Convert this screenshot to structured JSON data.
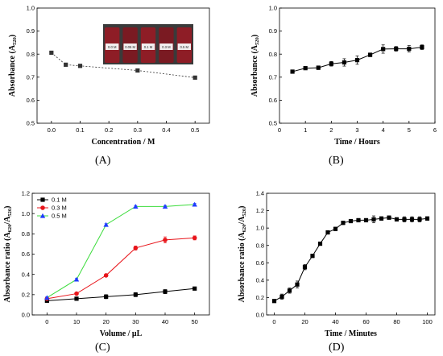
{
  "panel_labels": [
    "(A)",
    "(B)",
    "(C)",
    "(D)"
  ],
  "chart_data": [
    {
      "panel": "(A)",
      "type": "line",
      "xlabel": "Concentration / M",
      "ylabel": "Absorbance (A",
      "ylabel_sub": "520",
      "ylabel_tail": ")",
      "xlim": [
        -0.05,
        0.55
      ],
      "ylim": [
        0.5,
        1.0
      ],
      "xticks": [
        0.0,
        0.1,
        0.2,
        0.3,
        0.4,
        0.5
      ],
      "xtick_labels": [
        "0.0",
        "0.1",
        "0.2",
        "0.3",
        "0.4",
        "0.5"
      ],
      "yticks": [
        0.5,
        0.6,
        0.7,
        0.8,
        0.9,
        1.0
      ],
      "ytick_labels": [
        "0.5",
        "0.6",
        "0.7",
        "0.8",
        "0.9",
        "1.0"
      ],
      "grid": false,
      "series": [
        {
          "color": "#333333",
          "marker": "square",
          "dashed": true,
          "x": [
            0.0,
            0.05,
            0.1,
            0.3,
            0.5
          ],
          "y": [
            0.806,
            0.754,
            0.749,
            0.729,
            0.698
          ],
          "err": [
            0.004,
            0.004,
            0.007,
            0.004,
            0.004
          ]
        }
      ],
      "inset": {
        "vial_labels": [
          "0.0 M",
          "0.05 M",
          "0.1 M",
          "0.3 M",
          "0.5 M"
        ]
      }
    },
    {
      "panel": "(B)",
      "type": "line",
      "xlabel": "Time / Hours",
      "ylabel": "Absorbance (A",
      "ylabel_sub": "520",
      "ylabel_tail": ")",
      "xlim": [
        0,
        6
      ],
      "ylim": [
        0.5,
        1.0
      ],
      "xticks": [
        0,
        1,
        2,
        3,
        4,
        5,
        6
      ],
      "xtick_labels": [
        "0",
        "1",
        "2",
        "3",
        "4",
        "5",
        "6"
      ],
      "yticks": [
        0.5,
        0.6,
        0.7,
        0.8,
        0.9,
        1.0
      ],
      "ytick_labels": [
        "0.5",
        "0.6",
        "0.7",
        "0.8",
        "0.9",
        "1.0"
      ],
      "grid": false,
      "series": [
        {
          "color": "#000000",
          "marker": "square",
          "x": [
            0.5,
            1.0,
            1.5,
            2.0,
            2.5,
            3.0,
            3.5,
            4.0,
            4.5,
            5.0,
            5.5
          ],
          "y": [
            0.724,
            0.739,
            0.741,
            0.758,
            0.764,
            0.774,
            0.797,
            0.822,
            0.823,
            0.823,
            0.83
          ],
          "err": [
            0.005,
            0.006,
            0.008,
            0.01,
            0.016,
            0.018,
            0.008,
            0.018,
            0.01,
            0.014,
            0.01
          ]
        }
      ]
    },
    {
      "panel": "(C)",
      "type": "line",
      "xlabel": "Volume / μL",
      "ylabel": "Absorbance ratio (A",
      "ylabel_sub": "620",
      "ylabel_mid": "/A",
      "ylabel_sub2": "520",
      "ylabel_tail": ")",
      "xlim": [
        -5,
        55
      ],
      "ylim": [
        0.0,
        1.2
      ],
      "xticks": [
        0,
        10,
        20,
        30,
        40,
        50
      ],
      "xtick_labels": [
        "0",
        "10",
        "20",
        "30",
        "40",
        "50"
      ],
      "yticks": [
        0.0,
        0.2,
        0.4,
        0.6,
        0.8,
        1.0,
        1.2
      ],
      "ytick_labels": [
        "0.0",
        "0.2",
        "0.4",
        "0.6",
        "0.8",
        "1.0",
        "1.2"
      ],
      "grid": false,
      "legend": "top-left",
      "series": [
        {
          "name": "0.1 M",
          "color": "#000000",
          "marker": "square",
          "x": [
            0,
            10,
            20,
            30,
            40,
            50
          ],
          "y": [
            0.14,
            0.16,
            0.18,
            0.2,
            0.23,
            0.26
          ],
          "err": [
            0.01,
            0.01,
            0.02,
            0.02,
            0.02,
            0.01
          ]
        },
        {
          "name": "0.3 M",
          "color": "#e8151b",
          "marker": "circle",
          "x": [
            0,
            10,
            20,
            30,
            40,
            50
          ],
          "y": [
            0.16,
            0.21,
            0.39,
            0.66,
            0.74,
            0.76
          ],
          "err": [
            0.01,
            0.01,
            0.01,
            0.02,
            0.03,
            0.02
          ]
        },
        {
          "name": "0.5 M",
          "color": "#1f3cff",
          "line_color": "#3cdc3c",
          "marker": "triangle",
          "x": [
            0,
            10,
            20,
            30,
            40,
            50
          ],
          "y": [
            0.17,
            0.35,
            0.89,
            1.07,
            1.07,
            1.09
          ],
          "err": [
            0.01,
            0.01,
            0.01,
            0.01,
            0.01,
            0.01
          ]
        }
      ]
    },
    {
      "panel": "(D)",
      "type": "line",
      "xlabel": "Time / Minutes",
      "ylabel": "Absorbance ratio (A",
      "ylabel_sub": "620",
      "ylabel_mid": "/A",
      "ylabel_sub2": "520",
      "ylabel_tail": ")",
      "xlim": [
        -5,
        105
      ],
      "ylim": [
        0.0,
        1.4
      ],
      "xticks": [
        0,
        20,
        40,
        60,
        80,
        100
      ],
      "xtick_labels": [
        "0",
        "20",
        "40",
        "60",
        "80",
        "100"
      ],
      "yticks": [
        0.0,
        0.2,
        0.4,
        0.6,
        0.8,
        1.0,
        1.2,
        1.4
      ],
      "ytick_labels": [
        "0.0",
        "0.2",
        "0.4",
        "0.6",
        "0.8",
        "1.0",
        "1.2",
        "1.4"
      ],
      "grid": false,
      "series": [
        {
          "color": "#000000",
          "marker": "square",
          "x": [
            0,
            5,
            10,
            15,
            20,
            25,
            30,
            35,
            40,
            45,
            50,
            55,
            60,
            65,
            70,
            75,
            80,
            85,
            90,
            95,
            100
          ],
          "y": [
            0.16,
            0.21,
            0.28,
            0.35,
            0.55,
            0.68,
            0.82,
            0.95,
            0.99,
            1.06,
            1.08,
            1.09,
            1.09,
            1.1,
            1.11,
            1.12,
            1.1,
            1.1,
            1.1,
            1.1,
            1.11
          ],
          "err": [
            0.01,
            0.03,
            0.03,
            0.04,
            0.03,
            0.02,
            0.02,
            0.02,
            0.02,
            0.02,
            0.02,
            0.02,
            0.02,
            0.04,
            0.02,
            0.02,
            0.02,
            0.03,
            0.03,
            0.03,
            0.02
          ]
        }
      ]
    }
  ]
}
